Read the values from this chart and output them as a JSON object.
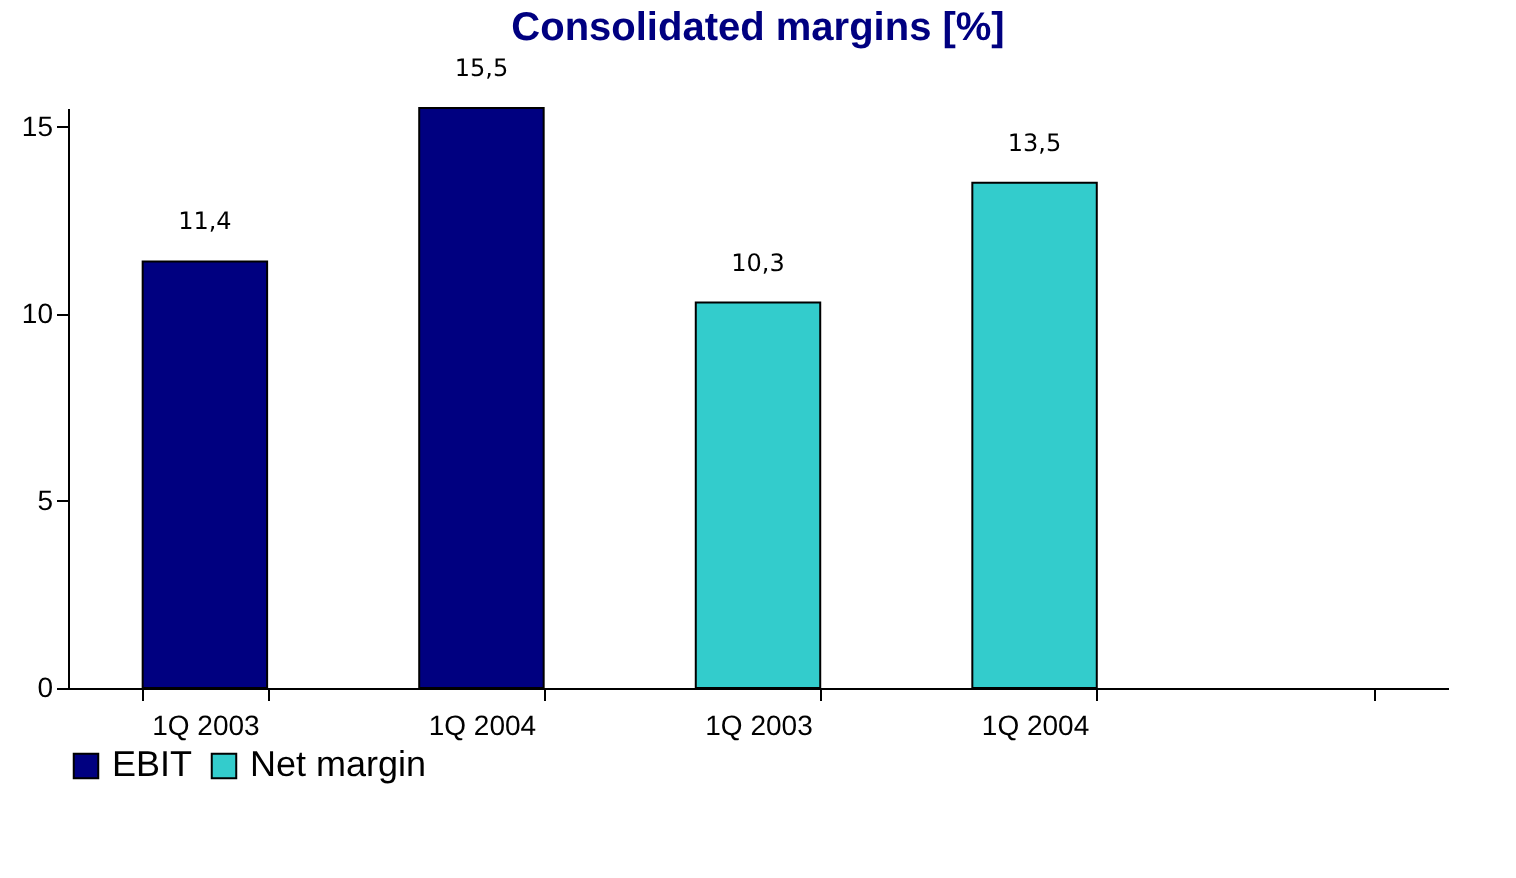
{
  "chart_data": {
    "type": "bar",
    "title": "Consolidated margins [%]",
    "categories": [
      "1Q 2003",
      "1Q 2004",
      "1Q 2003",
      "1Q 2004",
      null
    ],
    "series": [
      {
        "name": "EBIT",
        "color": "#000080",
        "values": [
          11.4,
          15.5,
          null,
          null,
          null
        ],
        "value_labels": [
          "11,4",
          "15,5",
          null,
          null,
          null
        ]
      },
      {
        "name": "Net margin",
        "color": "#33cccc",
        "values": [
          null,
          null,
          10.3,
          13.5,
          null
        ],
        "value_labels": [
          null,
          null,
          "10,3",
          "13,5",
          null
        ]
      }
    ],
    "ylim": [
      0,
      15.5
    ],
    "yticks": [
      0,
      5,
      10,
      15
    ],
    "grid": false,
    "legend": "bottom left"
  }
}
